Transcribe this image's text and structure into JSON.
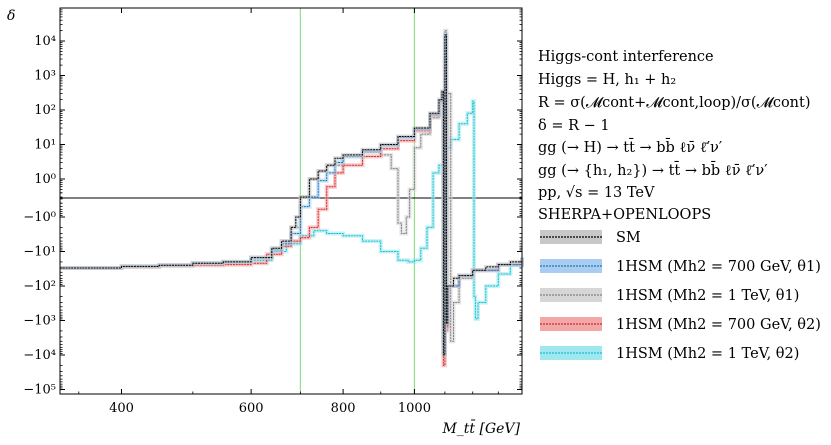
{
  "chart_data": {
    "type": "line",
    "title": "",
    "xlabel": "M_tt̄ [GeV]",
    "ylabel": "δ",
    "xscale": "log",
    "yscale": "symlog",
    "xlim": [
      330,
      1400
    ],
    "ylim": [
      -100000,
      100000
    ],
    "x_ticks": [
      400,
      600,
      800,
      1000
    ],
    "x_tick_labels": [
      "400",
      "600",
      "800",
      "1000"
    ],
    "y_ticks": [
      10000,
      1000,
      100,
      10,
      1,
      -1,
      -10,
      -100,
      -1000,
      -10000,
      -100000
    ],
    "y_tick_labels": [
      "10⁴",
      "10³",
      "10²",
      "10¹",
      "10⁰",
      "−10⁰",
      "−10¹",
      "−10²",
      "−10³",
      "−10⁴",
      "−10⁵"
    ],
    "vlines": [
      {
        "x": 700,
        "color": "#90e090"
      },
      {
        "x": 1000,
        "color": "#90e090"
      }
    ],
    "hline": 0,
    "legend_placement": "right",
    "legend_title_lines": [
      "Higgs-cont interference",
      "Higgs = H, h₁ + h₂",
      "R = σ(𝓜cont+𝓜cont,loop)/σ(𝓜cont)",
      "δ = R − 1",
      "gg (→ H) → tt̄ → bb̄ ℓν̄ ℓ̄′ν′",
      "gg (→ {h₁, h₂}) → tt̄ → bb̄ ℓν̄ ℓ̄′ν′",
      "pp, √s = 13 TeV",
      "SHERPA+OPENLOOPS"
    ],
    "series": [
      {
        "name": "SM",
        "color": "#000000",
        "band": "#c8c8c8",
        "points": [
          [
            330,
            -30
          ],
          [
            400,
            -27
          ],
          [
            450,
            -25
          ],
          [
            500,
            -22
          ],
          [
            550,
            -20
          ],
          [
            600,
            -15
          ],
          [
            640,
            -8
          ],
          [
            660,
            -5
          ],
          [
            680,
            -2
          ],
          [
            690,
            -1
          ],
          [
            700,
            0.3
          ],
          [
            720,
            1
          ],
          [
            740,
            1.7
          ],
          [
            760,
            2.5
          ],
          [
            780,
            4
          ],
          [
            800,
            5
          ],
          [
            850,
            7
          ],
          [
            900,
            10
          ],
          [
            950,
            17
          ],
          [
            1000,
            30
          ],
          [
            1050,
            80
          ],
          [
            1080,
            200
          ],
          [
            1090,
            350
          ],
          [
            1095,
            -10000
          ],
          [
            1100,
            15000
          ],
          [
            1105,
            -1200
          ],
          [
            1110,
            -100
          ],
          [
            1130,
            -60
          ],
          [
            1150,
            -50
          ],
          [
            1200,
            -35
          ],
          [
            1250,
            -28
          ],
          [
            1300,
            -24
          ],
          [
            1350,
            -20
          ],
          [
            1400,
            -15
          ]
        ]
      },
      {
        "name": "1HSM (Mh2 = 700 GeV, θ1)",
        "color": "#1f77b4",
        "band": "#a9cdf0",
        "points": [
          [
            330,
            -30
          ],
          [
            400,
            -27
          ],
          [
            450,
            -25
          ],
          [
            500,
            -22
          ],
          [
            550,
            -20
          ],
          [
            600,
            -15
          ],
          [
            640,
            -9
          ],
          [
            660,
            -6
          ],
          [
            680,
            -3
          ],
          [
            700,
            -0.5
          ],
          [
            720,
            0.3
          ],
          [
            740,
            0.9
          ],
          [
            760,
            1.5
          ],
          [
            780,
            3
          ],
          [
            800,
            4.5
          ],
          [
            850,
            6.5
          ],
          [
            900,
            9.5
          ],
          [
            950,
            16
          ],
          [
            1000,
            28
          ],
          [
            1050,
            75
          ],
          [
            1080,
            180
          ],
          [
            1090,
            300
          ],
          [
            1095,
            -9000
          ],
          [
            1100,
            14000
          ],
          [
            1105,
            -1000
          ],
          [
            1110,
            -100
          ],
          [
            1150,
            -50
          ],
          [
            1200,
            -35
          ],
          [
            1300,
            -24
          ],
          [
            1400,
            -15
          ]
        ]
      },
      {
        "name": "1HSM (Mh2 = 1 TeV, θ1)",
        "color": "#7f7f7f",
        "band": "#d6d6d6",
        "points": [
          [
            330,
            -30
          ],
          [
            400,
            -27
          ],
          [
            450,
            -25
          ],
          [
            500,
            -22
          ],
          [
            550,
            -20
          ],
          [
            600,
            -15
          ],
          [
            640,
            -8
          ],
          [
            660,
            -5
          ],
          [
            680,
            -2
          ],
          [
            700,
            0.3
          ],
          [
            720,
            1
          ],
          [
            740,
            1.7
          ],
          [
            760,
            2.5
          ],
          [
            800,
            4.5
          ],
          [
            850,
            6
          ],
          [
            900,
            5
          ],
          [
            930,
            2
          ],
          [
            950,
            -1.5
          ],
          [
            960,
            -3
          ],
          [
            975,
            -1
          ],
          [
            985,
            0.5
          ],
          [
            1000,
            8
          ],
          [
            1020,
            20
          ],
          [
            1050,
            60
          ],
          [
            1080,
            150
          ],
          [
            1095,
            -4000
          ],
          [
            1100,
            20000
          ],
          [
            1105,
            -2000
          ],
          [
            1110,
            300
          ],
          [
            1120,
            -4000
          ],
          [
            1130,
            -300
          ],
          [
            1150,
            -60
          ],
          [
            1200,
            -35
          ],
          [
            1300,
            -24
          ],
          [
            1400,
            -15
          ]
        ]
      },
      {
        "name": "1HSM (Mh2 = 700 GeV, θ2)",
        "color": "#d62728",
        "band": "#f2a8a8",
        "points": [
          [
            330,
            -30
          ],
          [
            400,
            -28
          ],
          [
            450,
            -26
          ],
          [
            500,
            -25
          ],
          [
            550,
            -24
          ],
          [
            600,
            -22
          ],
          [
            630,
            -12
          ],
          [
            660,
            -7
          ],
          [
            680,
            -5
          ],
          [
            700,
            -4
          ],
          [
            720,
            -2
          ],
          [
            740,
            -0.6
          ],
          [
            760,
            0.6
          ],
          [
            780,
            1.5
          ],
          [
            800,
            2.5
          ],
          [
            850,
            4.5
          ],
          [
            900,
            7.5
          ],
          [
            950,
            13
          ],
          [
            1000,
            25
          ],
          [
            1050,
            70
          ],
          [
            1080,
            180
          ],
          [
            1090,
            300
          ],
          [
            1095,
            -20000
          ],
          [
            1100,
            3000
          ],
          [
            1105,
            -1500
          ],
          [
            1110,
            -100
          ],
          [
            1150,
            -50
          ],
          [
            1200,
            -35
          ],
          [
            1300,
            -24
          ],
          [
            1400,
            -15
          ]
        ]
      },
      {
        "name": "1HSM (Mh2 = 1 TeV, θ2)",
        "color": "#17becf",
        "band": "#a0e8f0",
        "points": [
          [
            330,
            -30
          ],
          [
            400,
            -27
          ],
          [
            450,
            -25
          ],
          [
            500,
            -22
          ],
          [
            550,
            -20
          ],
          [
            600,
            -18
          ],
          [
            640,
            -10
          ],
          [
            670,
            -6
          ],
          [
            700,
            -3.5
          ],
          [
            730,
            -2.5
          ],
          [
            760,
            -3
          ],
          [
            800,
            -3.5
          ],
          [
            850,
            -5
          ],
          [
            900,
            -10
          ],
          [
            950,
            -18
          ],
          [
            980,
            -20
          ],
          [
            1000,
            -18
          ],
          [
            1020,
            -8
          ],
          [
            1040,
            -2
          ],
          [
            1060,
            1.5
          ],
          [
            1080,
            2.5
          ],
          [
            1100,
            8
          ],
          [
            1120,
            14
          ],
          [
            1150,
            40
          ],
          [
            1180,
            80
          ],
          [
            1200,
            180
          ],
          [
            1205,
            -200
          ],
          [
            1210,
            -900
          ],
          [
            1220,
            -300
          ],
          [
            1250,
            -100
          ],
          [
            1300,
            -45
          ],
          [
            1350,
            -25
          ],
          [
            1400,
            -15
          ]
        ]
      }
    ]
  }
}
